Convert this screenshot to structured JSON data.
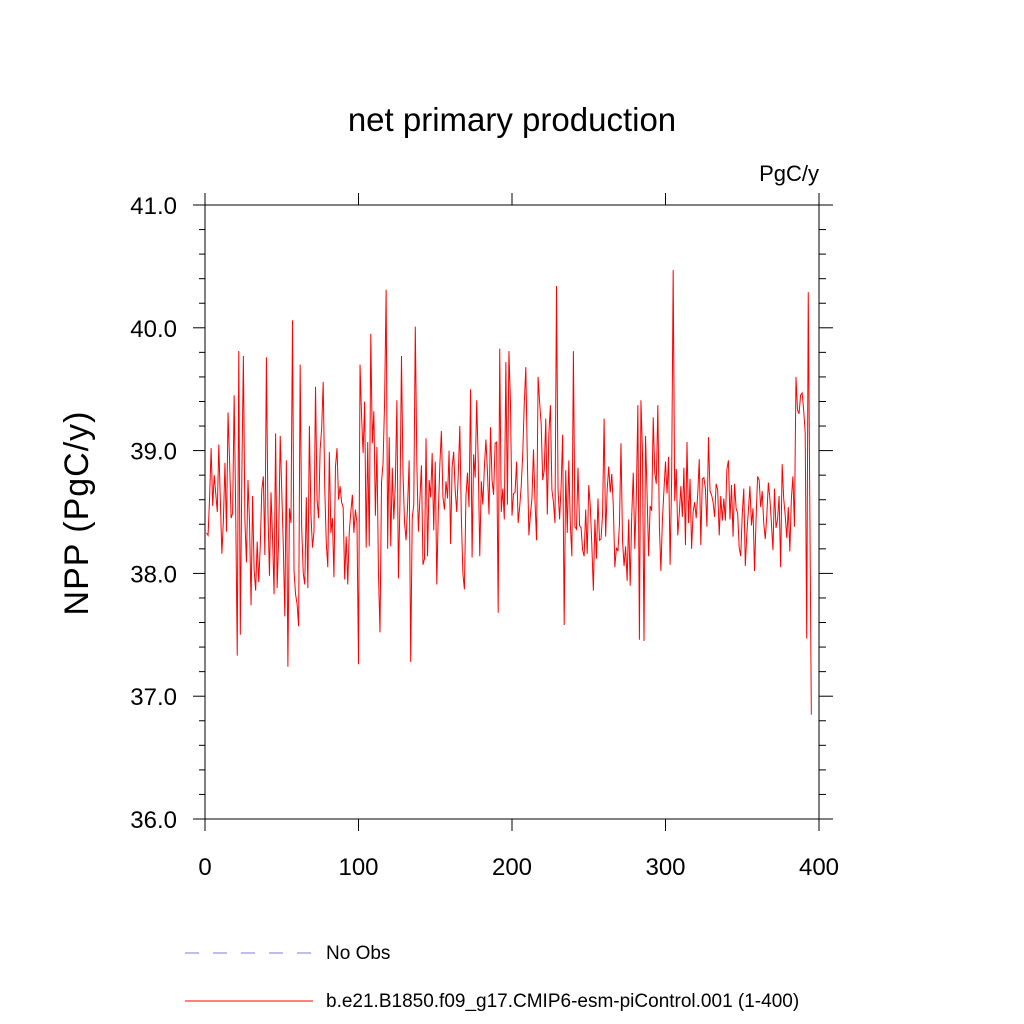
{
  "chart_data": {
    "type": "line",
    "title": "net primary production",
    "units_label": "PgC/y",
    "ylabel": "NPP  (PgC/y)",
    "xlabel": "",
    "xlim": [
      0,
      400
    ],
    "ylim": [
      36.0,
      41.0
    ],
    "xticks": [
      0,
      100,
      200,
      300,
      400
    ],
    "xtick_labels": [
      "0",
      "100",
      "200",
      "300",
      "400"
    ],
    "yticks": [
      36.0,
      37.0,
      38.0,
      39.0,
      40.0,
      41.0
    ],
    "ytick_labels": [
      "36.0",
      "37.0",
      "38.0",
      "39.0",
      "40.0",
      "41.0"
    ],
    "grid": false,
    "legend": {
      "position": "bottom",
      "entries": [
        {
          "label": "No Obs",
          "style": "dashed",
          "color": "#7b7bd6"
        },
        {
          "label": "b.e21.B1850.f09_g17.CMIP6-esm-piControl.001 (1-400)",
          "style": "solid",
          "color": "#ff0000"
        }
      ]
    },
    "series": [
      {
        "name": "b.e21.B1850.f09_g17.CMIP6-esm-piControl.001 (1-400)",
        "color": "#ff0000",
        "x_start": 1,
        "x_step": 1,
        "values": [
          38.33,
          38.31,
          38.62,
          39.02,
          38.55,
          38.8,
          38.65,
          38.5,
          39.05,
          38.59,
          38.16,
          38.44,
          38.9,
          38.34,
          39.31,
          38.92,
          38.45,
          38.49,
          39.45,
          38.5,
          37.33,
          39.81,
          37.5,
          38.8,
          39.77,
          38.43,
          38.09,
          38.76,
          38.42,
          37.74,
          38.63,
          38.03,
          37.86,
          38.26,
          37.93,
          38.22,
          38.68,
          38.79,
          38.15,
          39.76,
          38.5,
          37.98,
          38.66,
          38.29,
          37.83,
          39.14,
          37.88,
          38.29,
          39.12,
          38.67,
          38.23,
          37.65,
          38.92,
          37.24,
          38.53,
          38.41,
          40.06,
          38.02,
          37.83,
          37.75,
          37.57,
          39.7,
          38.37,
          38.0,
          37.91,
          38.62,
          37.88,
          39.2,
          38.49,
          38.21,
          38.34,
          39.52,
          38.6,
          38.45,
          39.01,
          39.18,
          39.56,
          38.7,
          38.25,
          38.05,
          38.99,
          38.33,
          38.45,
          37.97,
          38.87,
          39.02,
          38.6,
          38.71,
          38.58,
          38.54,
          37.95,
          38.3,
          37.91,
          38.34,
          38.5,
          38.64,
          38.33,
          38.52,
          38.41,
          37.26,
          39.7,
          39.28,
          38.98,
          39.4,
          38.21,
          39.07,
          38.22,
          39.95,
          39.06,
          39.32,
          38.47,
          39.03,
          38.01,
          37.52,
          38.74,
          38.9,
          39.4,
          40.31,
          38.2,
          39.11,
          38.22,
          38.86,
          38.44,
          38.73,
          39.41,
          37.96,
          38.56,
          39.77,
          38.81,
          38.41,
          38.27,
          38.56,
          38.92,
          37.28,
          38.45,
          38.56,
          40.01,
          38.9,
          38.34,
          38.61,
          38.88,
          38.07,
          38.12,
          39.1,
          38.14,
          38.76,
          38.62,
          38.98,
          38.35,
          38.91,
          37.91,
          38.5,
          38.89,
          39.16,
          38.62,
          38.52,
          38.75,
          38.61,
          39.0,
          38.24,
          38.87,
          38.99,
          38.68,
          38.5,
          38.81,
          39.2,
          38.46,
          38.0,
          37.87,
          38.63,
          38.82,
          38.54,
          39.5,
          38.13,
          38.97,
          38.78,
          39.41,
          38.91,
          38.14,
          38.75,
          38.56,
          38.86,
          39.09,
          38.83,
          38.48,
          39.19,
          38.76,
          38.64,
          39.06,
          39.07,
          37.68,
          39.83,
          38.5,
          38.69,
          38.44,
          39.72,
          38.56,
          39.81,
          39.39,
          38.47,
          38.65,
          38.66,
          38.91,
          38.41,
          38.54,
          38.71,
          38.97,
          39.39,
          39.68,
          38.92,
          38.31,
          38.48,
          38.61,
          39.01,
          38.58,
          38.27,
          39.6,
          39.39,
          39.22,
          38.76,
          38.84,
          39.26,
          38.48,
          39.13,
          39.37,
          38.68,
          38.58,
          38.41,
          40.34,
          38.68,
          38.44,
          38.71,
          39.13,
          37.58,
          38.84,
          38.33,
          38.92,
          38.4,
          38.14,
          39.81,
          38.38,
          38.36,
          38.86,
          38.39,
          38.37,
          38.19,
          38.14,
          38.52,
          38.16,
          38.72,
          38.55,
          38.23,
          37.86,
          38.44,
          38.12,
          38.61,
          38.27,
          38.28,
          38.48,
          39.26,
          38.3,
          38.68,
          38.87,
          38.66,
          38.81,
          38.55,
          38.05,
          38.21,
          38.18,
          38.4,
          39.06,
          38.27,
          38.06,
          38.22,
          37.94,
          38.44,
          37.9,
          38.47,
          38.82,
          38.2,
          38.63,
          39.37,
          37.46,
          39.41,
          38.98,
          37.45,
          39.12,
          38.64,
          38.14,
          38.55,
          38.51,
          39.27,
          38.82,
          38.73,
          39.37,
          38.39,
          38.02,
          38.44,
          38.68,
          38.91,
          38.65,
          38.95,
          38.07,
          38.77,
          40.47,
          38.59,
          38.85,
          38.31,
          38.49,
          38.71,
          38.46,
          38.86,
          38.23,
          39.07,
          38.41,
          38.77,
          38.2,
          38.5,
          38.58,
          38.45,
          38.65,
          38.93,
          38.23,
          38.77,
          38.78,
          38.69,
          38.38,
          39.11,
          38.67,
          38.64,
          38.58,
          38.46,
          38.73,
          38.68,
          38.31,
          38.63,
          38.43,
          38.61,
          38.43,
          38.85,
          38.92,
          38.44,
          38.72,
          38.3,
          38.73,
          38.53,
          38.49,
          38.21,
          38.14,
          38.48,
          38.69,
          38.06,
          38.33,
          38.51,
          38.71,
          38.39,
          38.53,
          38.02,
          38.44,
          38.79,
          38.76,
          38.54,
          38.67,
          38.41,
          38.28,
          38.47,
          38.74,
          38.61,
          38.41,
          38.19,
          38.69,
          38.37,
          38.44,
          38.63,
          38.05,
          38.89,
          38.61,
          38.47,
          38.29,
          38.54,
          38.18,
          38.61,
          38.79,
          38.38,
          39.6,
          39.33,
          39.3,
          39.45,
          39.47,
          39.33,
          39.15,
          37.47,
          40.29,
          38.58,
          36.85
        ]
      }
    ]
  }
}
